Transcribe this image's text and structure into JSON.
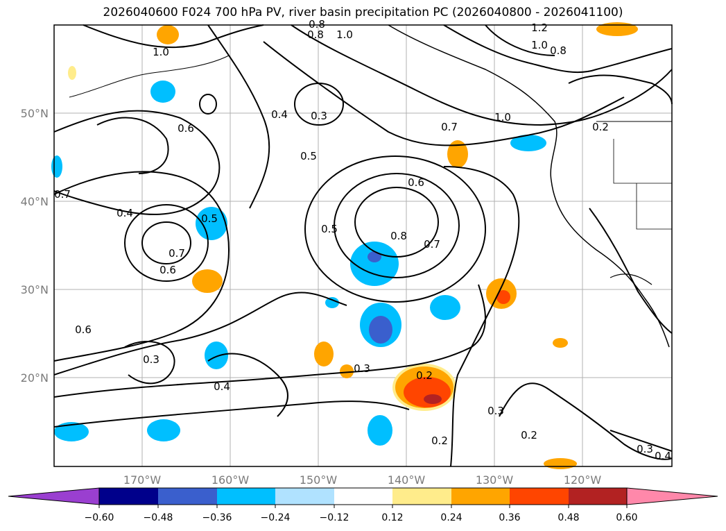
{
  "title": "2026040600 F024 700 hPa PV, river basin precipitation PC (2026040800 - 2026041100)",
  "longitude_labels": [
    "170°W",
    "160°W",
    "150°W",
    "140°W",
    "130°W",
    "120°W"
  ],
  "latitude_labels": [
    "50°N",
    "40°N",
    "30°N",
    "20°N"
  ],
  "contour_labels": [
    "1.0",
    "0.8",
    "1.0",
    "1.2",
    "1.0",
    "0.8",
    "0.8",
    "0.6",
    "0.4",
    "0.3",
    "0.5",
    "0.7",
    "1.0",
    "0.2",
    "0.6",
    "0.8",
    "0.5",
    "0.7",
    "0.7",
    "0.4",
    "0.5",
    "0.7",
    "0.6",
    "0.6",
    "0.3",
    "0.4",
    "0.3",
    "0.2",
    "0.3",
    "0.2",
    "0.2",
    "0.3",
    "0.4"
  ],
  "colorbar": {
    "ticks": [
      "−0.60",
      "−0.48",
      "−0.36",
      "−0.24",
      "−0.12",
      "0.12",
      "0.24",
      "0.36",
      "0.48",
      "0.60"
    ],
    "colors": [
      "#9a3fd0",
      "#00008b",
      "#3a5fcd",
      "#00bfff",
      "#b0e2ff",
      "#ffffff",
      "#ffec8b",
      "#ffa500",
      "#ff4500",
      "#b22222",
      "#ff88aa"
    ]
  },
  "map_colors": {
    "coast": "#000000",
    "grid": "#b0b0b0",
    "contour": "#000000"
  }
}
